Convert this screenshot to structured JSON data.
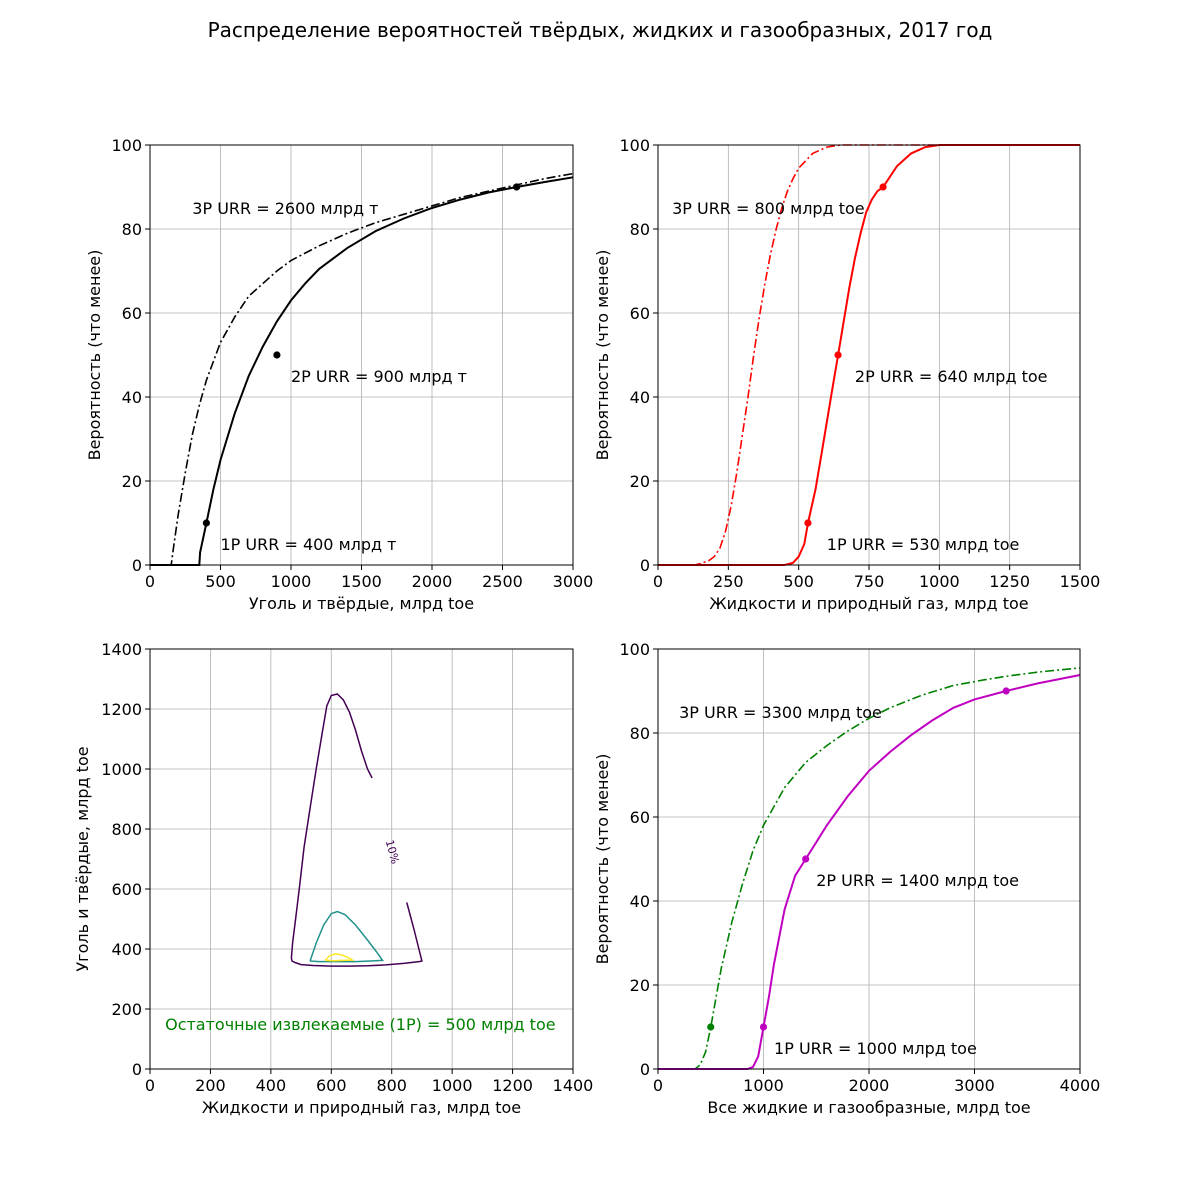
{
  "figure": {
    "suptitle": "Распределение вероятностей твёрдых, жидких и газообразных, 2017 год"
  },
  "chart_data": [
    {
      "type": "line",
      "xlabel": "Уголь и твёрдые, млрд toe",
      "ylabel": "Вероятность (что менее)",
      "xlim": [
        0,
        3000
      ],
      "ylim": [
        0,
        100
      ],
      "xticks": [
        0,
        500,
        1000,
        1500,
        2000,
        2500,
        3000
      ],
      "yticks": [
        0,
        20,
        40,
        60,
        80,
        100
      ],
      "grid": true,
      "color": "#000000",
      "series": [
        {
          "style": "dashdot",
          "points": [
            [
              0,
              0
            ],
            [
              150,
              0
            ],
            [
              170,
              5
            ],
            [
              200,
              12
            ],
            [
              250,
              22
            ],
            [
              300,
              31
            ],
            [
              350,
              38
            ],
            [
              400,
              44
            ],
            [
              500,
              53
            ],
            [
              600,
              59
            ],
            [
              700,
              64
            ],
            [
              800,
              67
            ],
            [
              900,
              70
            ],
            [
              1000,
              72.5
            ],
            [
              1200,
              76
            ],
            [
              1400,
              79
            ],
            [
              1600,
              81.5
            ],
            [
              1800,
              83.5
            ],
            [
              2000,
              85.5
            ],
            [
              2200,
              87.5
            ],
            [
              2400,
              89
            ],
            [
              2600,
              90.5
            ],
            [
              2800,
              92
            ],
            [
              3000,
              93.2
            ]
          ]
        },
        {
          "style": "solid",
          "points": [
            [
              0,
              0
            ],
            [
              350,
              0
            ],
            [
              355,
              3
            ],
            [
              400,
              10
            ],
            [
              450,
              18
            ],
            [
              500,
              25
            ],
            [
              600,
              36
            ],
            [
              700,
              45
            ],
            [
              800,
              52
            ],
            [
              900,
              58
            ],
            [
              1000,
              63
            ],
            [
              1100,
              67
            ],
            [
              1200,
              70.5
            ],
            [
              1400,
              75.5
            ],
            [
              1600,
              79.5
            ],
            [
              1800,
              82.5
            ],
            [
              2000,
              85
            ],
            [
              2200,
              87
            ],
            [
              2400,
              88.7
            ],
            [
              2600,
              90
            ],
            [
              2800,
              91.2
            ],
            [
              3000,
              92.3
            ]
          ]
        }
      ],
      "markers": [
        [
          400,
          10
        ],
        [
          900,
          50
        ],
        [
          2600,
          90
        ]
      ],
      "annotations": [
        {
          "text": "3P URR = 2600 млрд т",
          "x": 300,
          "y": 85
        },
        {
          "text": "2P URR = 900 млрд т",
          "x": 1000,
          "y": 45
        },
        {
          "text": "1P URR = 400 млрд т",
          "x": 500,
          "y": 5
        }
      ]
    },
    {
      "type": "line",
      "xlabel": "Жидкости и природный газ, млрд toe",
      "ylabel": "Вероятность (что менее)",
      "xlim": [
        0,
        1500
      ],
      "ylim": [
        0,
        100
      ],
      "xticks": [
        0,
        250,
        500,
        750,
        1000,
        1250,
        1500
      ],
      "yticks": [
        0,
        20,
        40,
        60,
        80,
        100
      ],
      "grid": true,
      "color": "#ff0000",
      "series": [
        {
          "style": "dashdot",
          "points": [
            [
              0,
              0
            ],
            [
              130,
              0
            ],
            [
              150,
              0.3
            ],
            [
              180,
              1
            ],
            [
              200,
              2
            ],
            [
              220,
              4
            ],
            [
              240,
              8
            ],
            [
              260,
              14
            ],
            [
              280,
              22
            ],
            [
              300,
              31
            ],
            [
              320,
              40
            ],
            [
              340,
              50
            ],
            [
              360,
              59
            ],
            [
              380,
              67
            ],
            [
              400,
              74
            ],
            [
              420,
              80
            ],
            [
              440,
              85
            ],
            [
              460,
              89
            ],
            [
              480,
              92
            ],
            [
              500,
              94.5
            ],
            [
              550,
              98
            ],
            [
              600,
              99.5
            ],
            [
              650,
              100
            ],
            [
              1500,
              100
            ]
          ]
        },
        {
          "style": "solid",
          "points": [
            [
              0,
              0
            ],
            [
              450,
              0
            ],
            [
              480,
              0.5
            ],
            [
              500,
              2
            ],
            [
              520,
              5
            ],
            [
              533,
              10
            ],
            [
              560,
              18
            ],
            [
              580,
              26
            ],
            [
              600,
              34
            ],
            [
              620,
              42
            ],
            [
              640,
              50
            ],
            [
              660,
              58
            ],
            [
              680,
              66
            ],
            [
              700,
              73
            ],
            [
              720,
              79
            ],
            [
              740,
              84
            ],
            [
              760,
              87
            ],
            [
              780,
              89
            ],
            [
              800,
              90
            ],
            [
              850,
              95
            ],
            [
              900,
              98
            ],
            [
              950,
              99.5
            ],
            [
              1000,
              100
            ],
            [
              1500,
              100
            ]
          ]
        }
      ],
      "markers": [
        [
          533,
          10
        ],
        [
          640,
          50
        ],
        [
          800,
          90
        ]
      ],
      "annotations": [
        {
          "text": "3P URR = 800 млрд toe",
          "x": 50,
          "y": 85
        },
        {
          "text": "2P URR = 640 млрд toe",
          "x": 700,
          "y": 45
        },
        {
          "text": "1P URR = 530 млрд toe",
          "x": 600,
          "y": 5
        }
      ]
    },
    {
      "type": "contour",
      "xlabel": "Жидкости и природный газ, млрд toe",
      "ylabel": "Уголь и твёрдые, млрд toe",
      "xlim": [
        0,
        1400
      ],
      "ylim": [
        0,
        1400
      ],
      "xticks": [
        0,
        200,
        400,
        600,
        800,
        1000,
        1200,
        1400
      ],
      "yticks": [
        0,
        200,
        400,
        600,
        800,
        1000,
        1200,
        1400
      ],
      "grid": true,
      "series": [
        {
          "color": "#440154",
          "label": "10%",
          "paths": [
            [
              [
                735,
                970
              ],
              [
                720,
                1000
              ],
              [
                700,
                1060
              ],
              [
                680,
                1130
              ],
              [
                660,
                1190
              ],
              [
                640,
                1230
              ],
              [
                620,
                1250
              ],
              [
                600,
                1245
              ],
              [
                585,
                1210
              ],
              [
                570,
                1120
              ],
              [
                550,
                1000
              ],
              [
                530,
                870
              ],
              [
                510,
                740
              ],
              [
                495,
                610
              ],
              [
                482,
                500
              ],
              [
                472,
                420
              ],
              [
                468,
                370
              ],
              [
                470,
                360
              ],
              [
                480,
                355
              ],
              [
                500,
                348
              ],
              [
                540,
                345
              ],
              [
                600,
                343
              ],
              [
                660,
                343
              ],
              [
                720,
                344
              ],
              [
                780,
                347
              ],
              [
                840,
                352
              ],
              [
                890,
                358
              ],
              [
                900,
                360
              ],
              [
                895,
                380
              ],
              [
                885,
                420
              ],
              [
                875,
                460
              ],
              [
                862,
                510
              ],
              [
                850,
                555
              ]
            ]
          ]
        },
        {
          "color": "#21918c",
          "paths": [
            [
              [
                530,
                360
              ],
              [
                550,
                420
              ],
              [
                575,
                480
              ],
              [
                600,
                518
              ],
              [
                620,
                525
              ],
              [
                645,
                515
              ],
              [
                680,
                480
              ],
              [
                720,
                430
              ],
              [
                750,
                390
              ],
              [
                770,
                362
              ],
              [
                730,
                360
              ],
              [
                680,
                358
              ],
              [
                620,
                358
              ],
              [
                560,
                358
              ],
              [
                530,
                360
              ]
            ]
          ]
        },
        {
          "color": "#fde725",
          "paths": [
            [
              [
                580,
                362
              ],
              [
                595,
                378
              ],
              [
                615,
                384
              ],
              [
                635,
                380
              ],
              [
                660,
                370
              ],
              [
                670,
                363
              ],
              [
                640,
                362
              ],
              [
                610,
                361
              ],
              [
                580,
                362
              ]
            ]
          ]
        }
      ],
      "annotations": [
        {
          "text": "Остаточные извлекаемые (1P) = 500 млрд toe",
          "x": 50,
          "y": 150,
          "color": "#008000"
        }
      ]
    },
    {
      "type": "line",
      "xlabel": "Все жидкие и газообразные, млрд toe",
      "ylabel": "Вероятность (что менее)",
      "xlim": [
        0,
        4000
      ],
      "ylim": [
        0,
        100
      ],
      "xticks": [
        0,
        1000,
        2000,
        3000,
        4000
      ],
      "yticks": [
        0,
        20,
        40,
        60,
        80,
        100
      ],
      "grid": true,
      "series": [
        {
          "style": "dashdot",
          "color": "#008000",
          "points": [
            [
              0,
              0
            ],
            [
              350,
              0
            ],
            [
              400,
              1
            ],
            [
              450,
              4
            ],
            [
              500,
              10
            ],
            [
              550,
              17
            ],
            [
              600,
              24
            ],
            [
              700,
              35
            ],
            [
              800,
              44
            ],
            [
              900,
              52
            ],
            [
              1000,
              58
            ],
            [
              1200,
              67
            ],
            [
              1400,
              73
            ],
            [
              1600,
              77
            ],
            [
              1800,
              80.5
            ],
            [
              2000,
              83.5
            ],
            [
              2200,
              86
            ],
            [
              2500,
              89
            ],
            [
              2800,
              91.3
            ],
            [
              3100,
              92.7
            ],
            [
              3300,
              93.5
            ],
            [
              3600,
              94.5
            ],
            [
              4000,
              95.5
            ]
          ]
        },
        {
          "style": "solid",
          "color": "#c000c0",
          "points": [
            [
              0,
              0
            ],
            [
              850,
              0
            ],
            [
              900,
              0.5
            ],
            [
              950,
              3
            ],
            [
              1000,
              10
            ],
            [
              1050,
              17
            ],
            [
              1100,
              25
            ],
            [
              1200,
              38
            ],
            [
              1300,
              46
            ],
            [
              1400,
              50
            ],
            [
              1500,
              54
            ],
            [
              1600,
              58
            ],
            [
              1800,
              65
            ],
            [
              2000,
              71
            ],
            [
              2200,
              75.5
            ],
            [
              2400,
              79.5
            ],
            [
              2600,
              83
            ],
            [
              2800,
              86
            ],
            [
              3000,
              88
            ],
            [
              3300,
              90
            ],
            [
              3600,
              91.8
            ],
            [
              4000,
              93.8
            ]
          ]
        }
      ],
      "markers": [
        {
          "color": "#008000",
          "x": 500,
          "y": 10
        },
        {
          "color": "#c000c0",
          "x": 1000,
          "y": 10
        },
        {
          "color": "#c000c0",
          "x": 1400,
          "y": 50
        },
        {
          "color": "#c000c0",
          "x": 3300,
          "y": 90
        }
      ],
      "annotations": [
        {
          "text": "3P URR = 3300 млрд toe",
          "x": 200,
          "y": 85
        },
        {
          "text": "2P URR = 1400 млрд toe",
          "x": 1500,
          "y": 45
        },
        {
          "text": "1P URR = 1000 млрд toe",
          "x": 1100,
          "y": 5
        }
      ]
    }
  ]
}
